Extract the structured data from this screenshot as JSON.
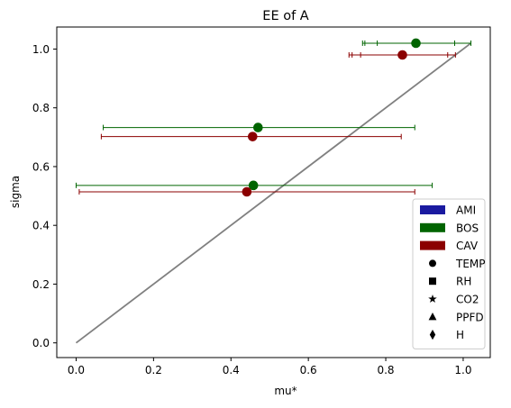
{
  "chart_data": {
    "type": "scatter",
    "title": "EE of A",
    "xlabel": "mu*",
    "ylabel": "sigma",
    "xlim": [
      -0.05,
      1.07
    ],
    "ylim": [
      -0.05,
      1.075
    ],
    "xticks": [
      0.0,
      0.2,
      0.4,
      0.6,
      0.8,
      1.0
    ],
    "xtick_labels": [
      "0.0",
      "0.2",
      "0.4",
      "0.6",
      "0.8",
      "1.0"
    ],
    "yticks": [
      0.0,
      0.2,
      0.4,
      0.6,
      0.8,
      1.0
    ],
    "ytick_labels": [
      "0.0",
      "0.2",
      "0.4",
      "0.6",
      "0.8",
      "1.0"
    ],
    "grid": false,
    "legend_position": "lower-right",
    "reference_line": {
      "x": [
        0.0,
        1.02
      ],
      "y": [
        0.0,
        1.02
      ],
      "color": "#808080"
    },
    "series": [
      {
        "name": "BOS",
        "color": "#006400",
        "marker": "circle",
        "points": [
          {
            "x": 0.878,
            "y": 1.02,
            "err_low": 0.74,
            "err_high": 1.02,
            "inner_ticks": [
              0.746,
              0.778,
              0.978
            ]
          },
          {
            "x": 0.47,
            "y": 0.733,
            "err_low": 0.07,
            "err_high": 0.875,
            "inner_ticks": []
          },
          {
            "x": 0.458,
            "y": 0.536,
            "err_low": 0.0,
            "err_high": 0.92,
            "inner_ticks": []
          }
        ]
      },
      {
        "name": "CAV",
        "color": "#8b0000",
        "marker": "circle",
        "points": [
          {
            "x": 0.843,
            "y": 0.98,
            "err_low": 0.705,
            "err_high": 0.98,
            "inner_ticks": [
              0.713,
              0.735,
              0.96
            ]
          },
          {
            "x": 0.456,
            "y": 0.702,
            "err_low": 0.065,
            "err_high": 0.84,
            "inner_ticks": []
          },
          {
            "x": 0.441,
            "y": 0.514,
            "err_low": 0.008,
            "err_high": 0.875,
            "inner_ticks": []
          }
        ]
      }
    ],
    "legend": [
      {
        "label": "AMI",
        "kind": "patch",
        "color": "#1a1aa0"
      },
      {
        "label": "BOS",
        "kind": "patch",
        "color": "#006400"
      },
      {
        "label": "CAV",
        "kind": "patch",
        "color": "#8b0000"
      },
      {
        "label": "TEMP",
        "kind": "marker",
        "marker": "circle"
      },
      {
        "label": "RH",
        "kind": "marker",
        "marker": "square"
      },
      {
        "label": "CO2",
        "kind": "marker",
        "marker": "star"
      },
      {
        "label": "PPFD",
        "kind": "marker",
        "marker": "triangle"
      },
      {
        "label": "H",
        "kind": "marker",
        "marker": "diamond"
      }
    ]
  }
}
